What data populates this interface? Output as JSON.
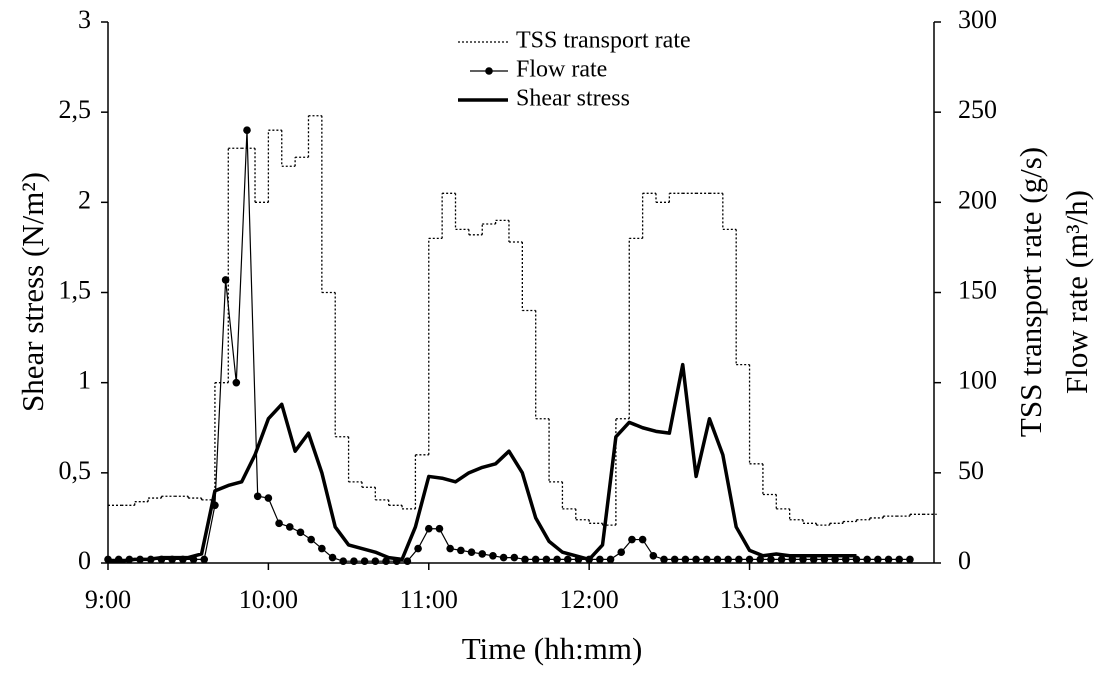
{
  "chart_data": {
    "type": "line",
    "x_label": "Time (hh:mm)",
    "y_label": "Shear stress (N/m²)",
    "y2_label": [
      "TSS transport rate (g/s)",
      "Flow rate (m³/h)"
    ],
    "xlim": [
      "9:00",
      "14:09"
    ],
    "xticks": [
      "9:00",
      "10:00",
      "11:00",
      "12:00",
      "13:00"
    ],
    "ylim": [
      0,
      3
    ],
    "yticks": [
      0,
      {
        "value": 0.5,
        "label": "0,5"
      },
      1,
      {
        "value": 1.5,
        "label": "1,5"
      },
      2,
      {
        "value": 2.5,
        "label": "2,5"
      },
      3
    ],
    "y2lim": [
      0,
      300
    ],
    "y2ticks": [
      0,
      50,
      100,
      150,
      200,
      250,
      300
    ],
    "legend": "upper center",
    "series": [
      {
        "name": "TSS transport rate",
        "color": "#000000",
        "axis": "y2",
        "line_style": "step-dotted",
        "x": [
          "9:00",
          "9:05",
          "9:10",
          "9:15",
          "9:20",
          "9:25",
          "9:30",
          "9:35",
          "9:40",
          "9:45",
          "9:50",
          "9:55",
          "10:00",
          "10:05",
          "10:10",
          "10:15",
          "10:20",
          "10:25",
          "10:30",
          "10:35",
          "10:40",
          "10:45",
          "10:50",
          "10:55",
          "11:00",
          "11:05",
          "11:10",
          "11:15",
          "11:20",
          "11:25",
          "11:30",
          "11:35",
          "11:40",
          "11:45",
          "11:50",
          "11:55",
          "12:00",
          "12:05",
          "12:10",
          "12:15",
          "12:20",
          "12:25",
          "12:30",
          "12:35",
          "12:40",
          "12:45",
          "12:50",
          "12:55",
          "13:00",
          "13:05",
          "13:10",
          "13:15",
          "13:20",
          "13:25",
          "13:30",
          "13:35",
          "13:40",
          "13:45",
          "13:50",
          "13:55",
          "14:00",
          "14:05"
        ],
        "values": [
          32,
          32,
          34,
          36,
          37,
          37,
          36,
          35,
          100,
          230,
          230,
          200,
          240,
          220,
          225,
          248,
          150,
          70,
          45,
          42,
          35,
          32,
          30,
          60,
          180,
          205,
          185,
          182,
          188,
          190,
          178,
          140,
          80,
          45,
          30,
          24,
          22,
          21,
          80,
          180,
          205,
          200,
          205,
          205,
          205,
          205,
          185,
          110,
          55,
          38,
          30,
          24,
          22,
          21,
          22,
          23,
          24,
          25,
          26,
          26,
          27,
          27
        ]
      },
      {
        "name": "Flow rate",
        "color": "#000000",
        "axis": "y2",
        "line_style": "markers",
        "x": [
          "9:00",
          "9:04",
          "9:08",
          "9:12",
          "9:16",
          "9:20",
          "9:24",
          "9:28",
          "9:32",
          "9:36",
          "9:40",
          "9:44",
          "9:48",
          "9:52",
          "9:56",
          "10:00",
          "10:04",
          "10:08",
          "10:12",
          "10:16",
          "10:20",
          "10:24",
          "10:28",
          "10:32",
          "10:36",
          "10:40",
          "10:44",
          "10:48",
          "10:52",
          "10:56",
          "11:00",
          "11:04",
          "11:08",
          "11:12",
          "11:16",
          "11:20",
          "11:24",
          "11:28",
          "11:32",
          "11:36",
          "11:40",
          "11:44",
          "11:48",
          "11:52",
          "11:56",
          "12:00",
          "12:04",
          "12:08",
          "12:12",
          "12:16",
          "12:20",
          "12:24",
          "12:28",
          "12:32",
          "12:36",
          "12:40",
          "12:44",
          "12:48",
          "12:52",
          "12:56",
          "13:00",
          "13:04",
          "13:08",
          "13:12",
          "13:16",
          "13:20",
          "13:24",
          "13:28",
          "13:32",
          "13:36",
          "13:40",
          "13:44",
          "13:48",
          "13:52",
          "13:56",
          "14:00"
        ],
        "values": [
          2,
          2,
          2,
          2,
          2,
          2,
          2,
          2,
          2,
          2,
          32,
          157,
          100,
          240,
          37,
          36,
          22,
          20,
          17,
          13,
          8,
          3,
          1,
          1,
          1,
          1,
          1,
          1,
          1,
          8,
          19,
          19,
          8,
          7,
          6,
          5,
          4,
          3,
          3,
          2,
          2,
          2,
          2,
          2,
          2,
          2,
          2,
          2,
          6,
          13,
          13,
          4,
          2,
          2,
          2,
          2,
          2,
          2,
          2,
          2,
          2,
          2,
          2,
          2,
          2,
          2,
          2,
          2,
          2,
          2,
          2,
          2,
          2,
          2,
          2,
          2
        ]
      },
      {
        "name": "Shear stress",
        "color": "#000000",
        "axis": "y",
        "line_style": "thick",
        "x": [
          "9:00",
          "9:05",
          "9:10",
          "9:15",
          "9:20",
          "9:25",
          "9:30",
          "9:35",
          "9:40",
          "9:45",
          "9:50",
          "9:55",
          "10:00",
          "10:05",
          "10:10",
          "10:15",
          "10:20",
          "10:25",
          "10:30",
          "10:35",
          "10:40",
          "10:45",
          "10:50",
          "10:55",
          "11:00",
          "11:05",
          "11:10",
          "11:15",
          "11:20",
          "11:25",
          "11:30",
          "11:35",
          "11:40",
          "11:45",
          "11:50",
          "11:55",
          "12:00",
          "12:05",
          "12:10",
          "12:15",
          "12:20",
          "12:25",
          "12:30",
          "12:35",
          "12:40",
          "12:45",
          "12:50",
          "12:55",
          "13:00",
          "13:05",
          "13:10",
          "13:15",
          "13:20",
          "13:25",
          "13:30",
          "13:35",
          "13:40"
        ],
        "values": [
          0.01,
          0.01,
          0.02,
          0.02,
          0.03,
          0.03,
          0.03,
          0.05,
          0.4,
          0.43,
          0.45,
          0.6,
          0.8,
          0.88,
          0.62,
          0.72,
          0.5,
          0.2,
          0.1,
          0.08,
          0.06,
          0.03,
          0.02,
          0.2,
          0.48,
          0.47,
          0.45,
          0.5,
          0.53,
          0.55,
          0.62,
          0.5,
          0.25,
          0.12,
          0.06,
          0.04,
          0.02,
          0.1,
          0.7,
          0.78,
          0.75,
          0.73,
          0.72,
          1.1,
          0.48,
          0.8,
          0.6,
          0.2,
          0.07,
          0.04,
          0.05,
          0.04,
          0.04,
          0.04,
          0.04,
          0.04,
          0.04
        ]
      }
    ]
  }
}
